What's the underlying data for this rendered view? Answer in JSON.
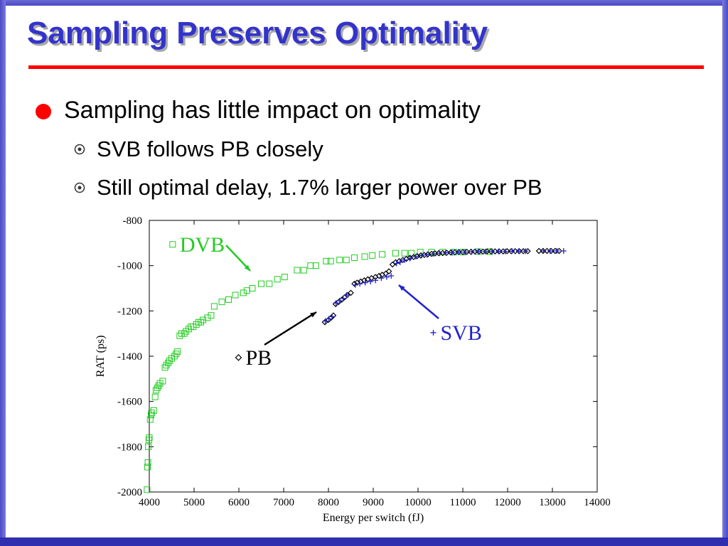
{
  "slide": {
    "title": "Sampling Preserves Optimality",
    "bullets": [
      {
        "text": "Sampling has little impact on optimality",
        "icon": "red-dot-bullet-icon"
      },
      {
        "text": "SVB follows PB closely",
        "icon": "circled-dot-bullet-icon"
      },
      {
        "text": "Still optimal delay, 1.7% larger power over PB",
        "icon": "circled-dot-bullet-icon"
      }
    ],
    "colors": {
      "title": "#3333cc",
      "rule": "#ff0000",
      "frame": "#4a4ac4",
      "bullet": "#ff0000"
    }
  },
  "chart_data": {
    "type": "scatter",
    "xlabel": "Energy per switch (fJ)",
    "ylabel": "RAT (ps)",
    "xlim": [
      4000,
      14000
    ],
    "ylim": [
      -2000,
      -800
    ],
    "xticks": [
      4000,
      5000,
      6000,
      7000,
      8000,
      9000,
      10000,
      11000,
      12000,
      13000,
      14000
    ],
    "yticks": [
      -800,
      -1000,
      -1200,
      -1400,
      -1600,
      -1800,
      -2000
    ],
    "grid": false,
    "series": [
      {
        "name": "DVB",
        "marker": "square",
        "color": "#22cc22",
        "points": [
          [
            3950,
            -1990
          ],
          [
            3960,
            -1890
          ],
          [
            3970,
            -1870
          ],
          [
            3980,
            -1800
          ],
          [
            3990,
            -1770
          ],
          [
            4000,
            -1760
          ],
          [
            4020,
            -1680
          ],
          [
            4040,
            -1660
          ],
          [
            4050,
            -1650
          ],
          [
            4100,
            -1640
          ],
          [
            4130,
            -1580
          ],
          [
            4150,
            -1550
          ],
          [
            4180,
            -1540
          ],
          [
            4210,
            -1530
          ],
          [
            4240,
            -1520
          ],
          [
            4300,
            -1510
          ],
          [
            4350,
            -1450
          ],
          [
            4380,
            -1440
          ],
          [
            4420,
            -1430
          ],
          [
            4450,
            -1420
          ],
          [
            4500,
            -1410
          ],
          [
            4560,
            -1400
          ],
          [
            4600,
            -1390
          ],
          [
            4630,
            -1380
          ],
          [
            4680,
            -1310
          ],
          [
            4720,
            -1300
          ],
          [
            4780,
            -1300
          ],
          [
            4820,
            -1290
          ],
          [
            4880,
            -1280
          ],
          [
            4930,
            -1270
          ],
          [
            4980,
            -1270
          ],
          [
            5050,
            -1260
          ],
          [
            5100,
            -1250
          ],
          [
            5150,
            -1250
          ],
          [
            5200,
            -1240
          ],
          [
            5300,
            -1230
          ],
          [
            5380,
            -1220
          ],
          [
            5450,
            -1180
          ],
          [
            5620,
            -1160
          ],
          [
            5770,
            -1150
          ],
          [
            5920,
            -1130
          ],
          [
            6100,
            -1120
          ],
          [
            6180,
            -1110
          ],
          [
            6300,
            -1100
          ],
          [
            6500,
            -1080
          ],
          [
            6680,
            -1080
          ],
          [
            6860,
            -1060
          ],
          [
            7020,
            -1050
          ],
          [
            7300,
            -1020
          ],
          [
            7450,
            -1020
          ],
          [
            7600,
            -1000
          ],
          [
            7720,
            -1000
          ],
          [
            7950,
            -980
          ],
          [
            8050,
            -980
          ],
          [
            8250,
            -975
          ],
          [
            8400,
            -975
          ],
          [
            8580,
            -965
          ],
          [
            8810,
            -960
          ],
          [
            8980,
            -955
          ],
          [
            9200,
            -950
          ],
          [
            9500,
            -945
          ],
          [
            9700,
            -945
          ],
          [
            9850,
            -945
          ],
          [
            10050,
            -940
          ],
          [
            10300,
            -940
          ],
          [
            10550,
            -940
          ],
          [
            10800,
            -940
          ],
          [
            11000,
            -940
          ],
          [
            11350,
            -938
          ],
          [
            11600,
            -938
          ]
        ]
      },
      {
        "name": "PB",
        "marker": "diamond",
        "color": "#000000",
        "points": [
          [
            7920,
            -1250
          ],
          [
            8000,
            -1240
          ],
          [
            8060,
            -1230
          ],
          [
            8110,
            -1220
          ],
          [
            8160,
            -1170
          ],
          [
            8230,
            -1160
          ],
          [
            8300,
            -1150
          ],
          [
            8360,
            -1140
          ],
          [
            8420,
            -1130
          ],
          [
            8500,
            -1120
          ],
          [
            8580,
            -1080
          ],
          [
            8640,
            -1075
          ],
          [
            8720,
            -1070
          ],
          [
            8800,
            -1065
          ],
          [
            8880,
            -1060
          ],
          [
            8960,
            -1055
          ],
          [
            9050,
            -1050
          ],
          [
            9130,
            -1045
          ],
          [
            9200,
            -1040
          ],
          [
            9280,
            -1035
          ],
          [
            9350,
            -1025
          ],
          [
            9430,
            -995
          ],
          [
            9500,
            -985
          ],
          [
            9580,
            -980
          ],
          [
            9660,
            -975
          ],
          [
            9740,
            -970
          ],
          [
            9820,
            -965
          ],
          [
            9900,
            -962
          ],
          [
            9980,
            -958
          ],
          [
            10060,
            -955
          ],
          [
            10140,
            -953
          ],
          [
            10220,
            -950
          ],
          [
            10300,
            -948
          ],
          [
            10380,
            -946
          ],
          [
            10460,
            -945
          ],
          [
            10550,
            -944
          ],
          [
            10640,
            -943
          ],
          [
            10730,
            -942
          ],
          [
            10820,
            -941
          ],
          [
            10910,
            -940
          ],
          [
            11000,
            -940
          ],
          [
            11090,
            -939
          ],
          [
            11180,
            -939
          ],
          [
            11270,
            -938
          ],
          [
            11360,
            -938
          ],
          [
            11450,
            -938
          ],
          [
            11540,
            -937
          ],
          [
            11630,
            -937
          ],
          [
            11720,
            -937
          ],
          [
            11810,
            -937
          ],
          [
            11900,
            -937
          ],
          [
            11990,
            -936
          ],
          [
            12080,
            -936
          ],
          [
            12170,
            -936
          ],
          [
            12260,
            -936
          ],
          [
            12350,
            -936
          ],
          [
            12450,
            -936
          ],
          [
            12700,
            -935
          ],
          [
            12790,
            -935
          ],
          [
            12880,
            -935
          ],
          [
            12970,
            -935
          ],
          [
            13060,
            -935
          ],
          [
            13150,
            -935
          ]
        ]
      },
      {
        "name": "SVB",
        "marker": "plus",
        "color": "#2222cc",
        "points": [
          [
            7930,
            -1245
          ],
          [
            8010,
            -1235
          ],
          [
            8080,
            -1225
          ],
          [
            8170,
            -1165
          ],
          [
            8250,
            -1155
          ],
          [
            8330,
            -1145
          ],
          [
            8410,
            -1130
          ],
          [
            8600,
            -1085
          ],
          [
            8700,
            -1080
          ],
          [
            8820,
            -1075
          ],
          [
            8940,
            -1070
          ],
          [
            9050,
            -1065
          ],
          [
            9180,
            -1055
          ],
          [
            9300,
            -1050
          ],
          [
            9400,
            -1045
          ],
          [
            9520,
            -990
          ],
          [
            9600,
            -985
          ],
          [
            9700,
            -975
          ],
          [
            9820,
            -968
          ],
          [
            9950,
            -960
          ],
          [
            10080,
            -955
          ],
          [
            10200,
            -952
          ],
          [
            10340,
            -948
          ],
          [
            10480,
            -945
          ],
          [
            10620,
            -943
          ],
          [
            10760,
            -942
          ],
          [
            10900,
            -940
          ],
          [
            11050,
            -940
          ],
          [
            11200,
            -939
          ],
          [
            11350,
            -938
          ],
          [
            11500,
            -938
          ],
          [
            11650,
            -937
          ],
          [
            11800,
            -937
          ],
          [
            11950,
            -937
          ],
          [
            12100,
            -936
          ],
          [
            12250,
            -936
          ],
          [
            12400,
            -936
          ],
          [
            12800,
            -935
          ],
          [
            12950,
            -935
          ],
          [
            13100,
            -935
          ],
          [
            13250,
            -935
          ]
        ]
      }
    ],
    "annotations": [
      {
        "text": "DVB",
        "color": "#22cc22",
        "marker": "square",
        "anchor": [
          4680,
          -925
        ]
      },
      {
        "text": "PB",
        "color": "#000000",
        "marker": "diamond",
        "anchor": [
          6150,
          -1425
        ]
      },
      {
        "text": "SVB",
        "color": "#2222cc",
        "marker": "plus",
        "anchor": [
          10500,
          -1315
        ]
      }
    ]
  }
}
